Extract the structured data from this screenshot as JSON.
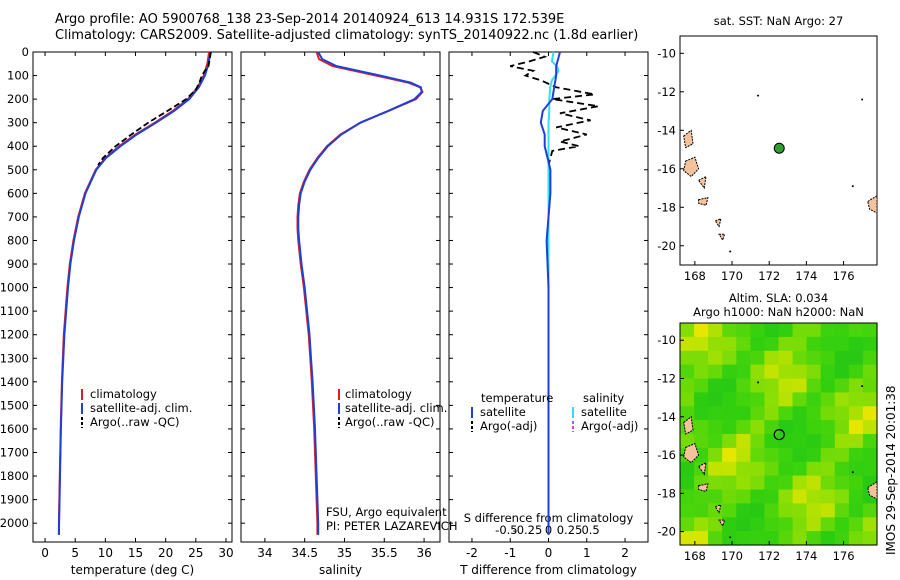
{
  "header": {
    "line1": "Argo profile: AO 5900768_138 23-Sep-2014 20140924_613 14.931S 172.539E",
    "line2": "Climatology: CARS2009. Satellite-adjusted climatology: synTS_20140922.nc (1.8d earlier)"
  },
  "colors": {
    "climatology": "#e02020",
    "satellite": "#1f3fd8",
    "argo": "#000000",
    "sal_satellite": "#30e0f0",
    "sal_argo": "#e040e0"
  },
  "chart_data": [
    {
      "type": "line",
      "id": "temperature",
      "xlabel": "temperature (deg C)",
      "xlim": [
        -2,
        31
      ],
      "xticks": [
        "0",
        "5",
        "10",
        "15",
        "20",
        "25",
        "30"
      ],
      "ylim": [
        2080,
        0
      ],
      "yticks": [
        "0",
        "100",
        "200",
        "300",
        "400",
        "500",
        "600",
        "700",
        "800",
        "900",
        "1000",
        "1100",
        "1200",
        "1300",
        "1400",
        "1500",
        "1600",
        "1700",
        "1800",
        "1900",
        "2000"
      ],
      "legend": [
        "climatology",
        "satellite-adj. clim.",
        "Argo(..raw -QC)"
      ],
      "series": [
        {
          "name": "climatology",
          "depth": [
            0,
            50,
            100,
            150,
            200,
            250,
            300,
            350,
            400,
            450,
            500,
            600,
            700,
            800,
            900,
            1000,
            1200,
            1400,
            1600,
            1800,
            2000,
            2050
          ],
          "values": [
            27.2,
            26.9,
            26.3,
            25.3,
            23.7,
            21.2,
            18.2,
            15.0,
            12.3,
            10.0,
            8.4,
            6.6,
            5.5,
            4.7,
            4.1,
            3.7,
            3.1,
            2.8,
            2.6,
            2.45,
            2.3,
            2.3
          ]
        },
        {
          "name": "satellite-adj. clim.",
          "depth": [
            0,
            50,
            100,
            150,
            200,
            250,
            300,
            350,
            400,
            450,
            500,
            600,
            700,
            800,
            900,
            1000,
            1200,
            1400,
            1600,
            1800,
            2000,
            2050
          ],
          "values": [
            27.4,
            27.1,
            26.5,
            25.5,
            23.9,
            21.4,
            18.4,
            15.2,
            12.5,
            10.1,
            8.5,
            6.7,
            5.6,
            4.8,
            4.2,
            3.8,
            3.2,
            2.85,
            2.62,
            2.47,
            2.32,
            2.3
          ]
        },
        {
          "name": "Argo(..raw -QC)",
          "depth": [
            0,
            30,
            60,
            80,
            100,
            130,
            160,
            200,
            250,
            300,
            350,
            400,
            450,
            480
          ],
          "values": [
            27.5,
            27.3,
            27.1,
            26.5,
            26.0,
            25.6,
            25.0,
            23.4,
            20.3,
            17.1,
            14.3,
            11.7,
            9.6,
            8.8
          ]
        }
      ],
      "annotation": ""
    },
    {
      "type": "line",
      "id": "salinity",
      "xlabel": "salinity",
      "xlim": [
        33.7,
        36.2
      ],
      "xticks": [
        "34",
        "34.5",
        "35",
        "35.5",
        "36"
      ],
      "ylim": [
        2080,
        0
      ],
      "legend": [
        "climatology",
        "satellite-adj. clim.",
        "Argo(..raw -QC)"
      ],
      "series": [
        {
          "name": "climatology",
          "depth": [
            0,
            30,
            60,
            100,
            130,
            150,
            170,
            200,
            250,
            300,
            350,
            400,
            450,
            500,
            550,
            600,
            650,
            700,
            750,
            800,
            900,
            1000,
            1100,
            1200,
            1300,
            1400,
            1600,
            1800,
            2000,
            2050
          ],
          "values": [
            34.65,
            34.68,
            34.85,
            35.4,
            35.8,
            35.95,
            35.98,
            35.9,
            35.55,
            35.2,
            34.95,
            34.78,
            34.66,
            34.56,
            34.49,
            34.44,
            34.42,
            34.41,
            34.41,
            34.42,
            34.45,
            34.49,
            34.52,
            34.55,
            34.57,
            34.59,
            34.62,
            34.64,
            34.66,
            34.66
          ]
        },
        {
          "name": "satellite-adj. clim.",
          "depth": [
            0,
            30,
            60,
            100,
            130,
            150,
            170,
            200,
            250,
            300,
            350,
            400,
            450,
            500,
            550,
            600,
            650,
            700,
            750,
            800,
            900,
            1000,
            1100,
            1200,
            1300,
            1400,
            1600,
            1800,
            2000,
            2050
          ],
          "values": [
            34.67,
            34.72,
            34.9,
            35.45,
            35.83,
            35.96,
            35.97,
            35.88,
            35.55,
            35.2,
            34.96,
            34.79,
            34.67,
            34.57,
            34.5,
            34.45,
            34.43,
            34.42,
            34.42,
            34.43,
            34.46,
            34.5,
            34.53,
            34.56,
            34.58,
            34.6,
            34.63,
            34.65,
            34.67,
            34.67
          ]
        }
      ],
      "annotation_line1": "FSU, Argo equivalent",
      "annotation_line2": "PI: PETER LAZAREVICH"
    },
    {
      "type": "line",
      "id": "difference",
      "xlabel": "T difference from climatology",
      "xlabel_top": "S difference from climatology",
      "xlim": [
        -2.6,
        2.6
      ],
      "xticks": [
        "-2",
        "-1",
        "0",
        "1",
        "2"
      ],
      "xticks_top": [
        "-0.5",
        "-0.25",
        "0",
        "0.25",
        "0.5"
      ],
      "ylim": [
        2080,
        0
      ],
      "legend_titles": [
        "temperature",
        "salinity"
      ],
      "legend_left": [
        "satellite",
        "Argo(-adj)"
      ],
      "legend_right": [
        "satellite",
        "Argo(-adj)"
      ],
      "series": [
        {
          "name": "T satellite",
          "depth": [
            0,
            30,
            60,
            100,
            150,
            200,
            250,
            300,
            350,
            400,
            500,
            600,
            700,
            800,
            1000,
            1500,
            2050
          ],
          "values": [
            0.3,
            0.25,
            0.2,
            0.2,
            0.15,
            0.1,
            -0.15,
            -0.2,
            -0.1,
            -0.1,
            0.05,
            0.05,
            0.0,
            -0.05,
            0.0,
            0.0,
            0.0
          ]
        },
        {
          "name": "S satellite",
          "depth": [
            0,
            20,
            40,
            60,
            80,
            100,
            120,
            150,
            200,
            250,
            300,
            350,
            400,
            500,
            600,
            800,
            1000,
            1500,
            2050
          ],
          "values": [
            0.06,
            0.05,
            0.04,
            0.1,
            0.12,
            0.08,
            0.04,
            0.02,
            0.01,
            0.01,
            0.0,
            0.0,
            0.0,
            0.0,
            0.0,
            0.0,
            0.0,
            0.0,
            0.0
          ]
        },
        {
          "name": "T Argo(-adj)",
          "depth": [
            0,
            20,
            40,
            60,
            80,
            100,
            120,
            150,
            180,
            200,
            230,
            260,
            290,
            320,
            350,
            380,
            400,
            420,
            450,
            480,
            500,
            550,
            600
          ],
          "values": [
            -0.4,
            -0.1,
            -0.5,
            -1.0,
            -0.4,
            -0.6,
            -0.2,
            0.2,
            1.2,
            0.1,
            1.3,
            0.3,
            1.1,
            0.2,
            1.0,
            0.3,
            0.8,
            0.1,
            0.05,
            0.0,
            0.0,
            0.0,
            0.0
          ]
        }
      ]
    },
    {
      "type": "scatter",
      "id": "sst-map",
      "title": "sat. SST: NaN Argo: 27",
      "xlim": [
        167.2,
        177.8
      ],
      "ylim": [
        -21,
        -9.1
      ],
      "xticks": [
        "168",
        "170",
        "172",
        "174",
        "176"
      ],
      "yticks": [
        "-10",
        "-12",
        "-14",
        "-16",
        "-18",
        "-20"
      ],
      "float_position": {
        "lon": 172.539,
        "lat": -14.931
      }
    },
    {
      "type": "heatmap",
      "id": "sla-map",
      "title": "Altim. SLA: 0.034",
      "subtitle": "Argo h1000: NaN h2000: NaN",
      "xlim": [
        167.2,
        177.8
      ],
      "ylim": [
        -20.7,
        -9.1
      ],
      "xticks": [
        "168",
        "170",
        "172",
        "174",
        "176"
      ],
      "yticks": [
        "-10",
        "-12",
        "-14",
        "-16",
        "-18",
        "-20"
      ],
      "float_position": {
        "lon": 172.539,
        "lat": -14.931
      }
    }
  ],
  "side_label": "IMOS 29-Sep-2014 20:01:38"
}
